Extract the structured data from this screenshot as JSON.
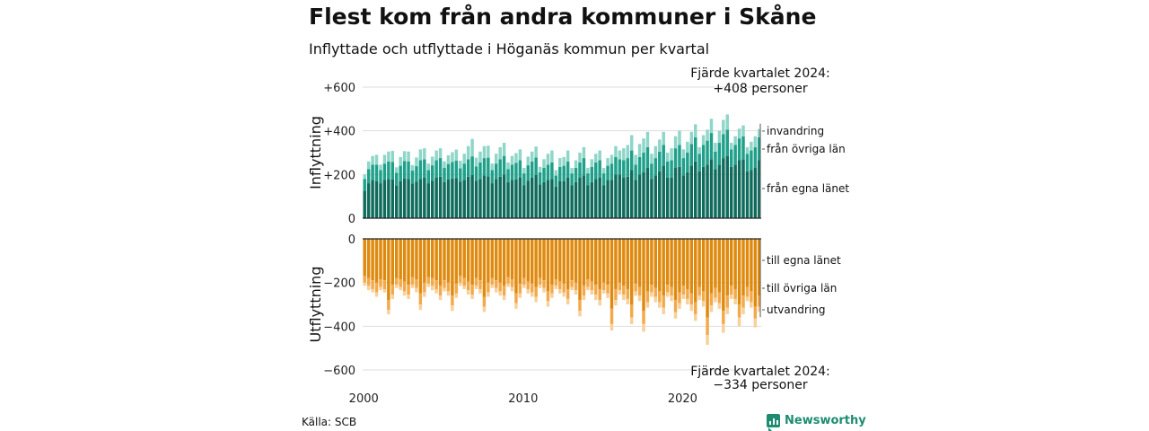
{
  "title": "Flest kom från andra kommuner i Skåne",
  "subtitle": "Inflyttade och utflyttade i Höganäs kommun per kvartal",
  "source": "Källa: SCB",
  "brand": "Newsworthy",
  "colors": {
    "in_own": "#0f6b5c",
    "in_other": "#1fa08a",
    "in_abroad": "#8fd6c9",
    "out_own": "#df8a0e",
    "out_other": "#f3a94a",
    "out_abroad": "#f8d09a",
    "grid": "#dddddd",
    "axis": "#222222"
  },
  "chart_data": {
    "type": "bar",
    "stacked": true,
    "x": {
      "start_year": 2000,
      "periods_per_year": 4,
      "ticks": [
        "2000",
        "2010",
        "2020"
      ]
    },
    "panels": [
      {
        "ylabel": "Inflyttning",
        "ylim": [
          0,
          600
        ],
        "yticks": [
          "0",
          "+200",
          "+400",
          "+600"
        ],
        "annotation": [
          "Fjärde kvartalet 2024:",
          "+408 personer"
        ],
        "series": [
          {
            "name": "från egna länet",
            "color_key": "in_own",
            "values": [
              125,
              160,
              175,
              170,
              160,
              175,
              180,
              178,
              148,
              170,
              182,
              180,
              158,
              168,
              180,
              185,
              160,
              172,
              185,
              190,
              165,
              178,
              182,
              184,
              168,
              175,
              190,
              198,
              172,
              180,
              195,
              192,
              160,
              180,
              190,
              200,
              165,
              175,
              178,
              185,
              150,
              172,
              185,
              198,
              155,
              165,
              175,
              180,
              145,
              170,
              170,
              185,
              150,
              165,
              185,
              195,
              150,
              165,
              180,
              185,
              150,
              175,
              175,
              200,
              200,
              185,
              190,
              220,
              175,
              200,
              210,
              230,
              180,
              195,
              215,
              240,
              185,
              185,
              230,
              235,
              195,
              210,
              240,
              260,
              215,
              235,
              245,
              270,
              225,
              245,
              275,
              285,
              235,
              245,
              265,
              270,
              215,
              220,
              230,
              265
            ]
          },
          {
            "name": "från övriga län",
            "color_key": "in_other",
            "values": [
              55,
              65,
              70,
              75,
              60,
              75,
              80,
              80,
              60,
              70,
              80,
              80,
              60,
              70,
              85,
              85,
              60,
              70,
              80,
              85,
              65,
              70,
              75,
              80,
              60,
              75,
              80,
              85,
              65,
              75,
              80,
              85,
              60,
              70,
              80,
              85,
              60,
              70,
              75,
              80,
              55,
              70,
              75,
              80,
              55,
              65,
              70,
              75,
              50,
              65,
              70,
              75,
              55,
              65,
              70,
              80,
              55,
              70,
              75,
              80,
              55,
              65,
              75,
              80,
              70,
              80,
              85,
              90,
              70,
              80,
              90,
              95,
              70,
              80,
              90,
              95,
              75,
              80,
              90,
              100,
              80,
              90,
              100,
              110,
              80,
              100,
              110,
              120,
              80,
              100,
              110,
              120,
              80,
              90,
              100,
              105,
              80,
              90,
              95,
              105
            ]
          },
          {
            "name": "invandring",
            "color_key": "in_abroad",
            "values": [
              20,
              35,
              40,
              45,
              25,
              40,
              45,
              50,
              25,
              40,
              45,
              45,
              25,
              40,
              50,
              50,
              30,
              40,
              45,
              45,
              30,
              40,
              45,
              50,
              35,
              45,
              60,
              80,
              40,
              50,
              55,
              55,
              30,
              45,
              55,
              60,
              30,
              40,
              45,
              50,
              25,
              40,
              45,
              50,
              25,
              40,
              50,
              55,
              25,
              40,
              40,
              50,
              25,
              35,
              45,
              50,
              25,
              35,
              40,
              45,
              25,
              35,
              40,
              50,
              40,
              55,
              60,
              70,
              45,
              60,
              65,
              70,
              45,
              55,
              55,
              60,
              40,
              55,
              55,
              65,
              40,
              50,
              55,
              60,
              30,
              45,
              50,
              65,
              40,
              55,
              65,
              70,
              30,
              40,
              45,
              50,
              30,
              40,
              50,
              38
            ]
          }
        ]
      },
      {
        "ylabel": "Utflyttning",
        "ylim": [
          -600,
          0
        ],
        "yticks": [
          "0",
          "−200",
          "−400",
          "−600"
        ],
        "annotation": [
          "Fjärde kvartalet 2024:",
          "−334 personer"
        ],
        "series": [
          {
            "name": "till egna länet",
            "color_key": "out_own",
            "values": [
              -170,
              -180,
              -190,
              -200,
              -185,
              -190,
              -280,
              -210,
              -180,
              -185,
              -195,
              -210,
              -175,
              -185,
              -250,
              -200,
              -175,
              -180,
              -190,
              -215,
              -190,
              -200,
              -260,
              -205,
              -170,
              -180,
              -195,
              -210,
              -180,
              -190,
              -265,
              -200,
              -180,
              -190,
              -200,
              -215,
              -175,
              -185,
              -250,
              -205,
              -180,
              -195,
              -205,
              -220,
              -180,
              -190,
              -240,
              -210,
              -185,
              -195,
              -205,
              -230,
              -190,
              -200,
              -280,
              -215,
              -185,
              -195,
              -210,
              -230,
              -200,
              -210,
              -320,
              -230,
              -200,
              -215,
              -230,
              -300,
              -205,
              -220,
              -330,
              -240,
              -210,
              -225,
              -240,
              -260,
              -210,
              -220,
              -280,
              -245,
              -215,
              -230,
              -250,
              -290,
              -220,
              -240,
              -360,
              -250,
              -225,
              -245,
              -330,
              -260,
              -215,
              -230,
              -300,
              -260,
              -220,
              -240,
              -310,
              -260
            ]
          },
          {
            "name": "till övriga län",
            "color_key": "out_other",
            "values": [
              -30,
              -35,
              -40,
              -45,
              -35,
              -40,
              -45,
              -45,
              -30,
              -35,
              -45,
              -45,
              -35,
              -40,
              -50,
              -45,
              -30,
              -35,
              -40,
              -45,
              -35,
              -40,
              -45,
              -45,
              -30,
              -35,
              -40,
              -45,
              -35,
              -40,
              -45,
              -45,
              -30,
              -35,
              -40,
              -45,
              -30,
              -35,
              -45,
              -45,
              -30,
              -35,
              -40,
              -45,
              -30,
              -35,
              -45,
              -40,
              -30,
              -35,
              -40,
              -45,
              -30,
              -35,
              -50,
              -45,
              -35,
              -40,
              -45,
              -50,
              -35,
              -40,
              -70,
              -50,
              -35,
              -40,
              -45,
              -60,
              -35,
              -40,
              -60,
              -50,
              -35,
              -40,
              -50,
              -55,
              -35,
              -40,
              -55,
              -50,
              -40,
              -45,
              -50,
              -55,
              -40,
              -45,
              -80,
              -55,
              -45,
              -50,
              -60,
              -55,
              -40,
              -45,
              -60,
              -55,
              -45,
              -50,
              -55,
              -50
            ]
          },
          {
            "name": "utvandring",
            "color_key": "out_abroad",
            "values": [
              -15,
              -20,
              -15,
              -20,
              -15,
              -15,
              -20,
              -20,
              -15,
              -15,
              -20,
              -20,
              -15,
              -20,
              -25,
              -20,
              -15,
              -20,
              -20,
              -20,
              -15,
              -20,
              -25,
              -20,
              -15,
              -15,
              -20,
              -20,
              -15,
              -20,
              -25,
              -20,
              -15,
              -20,
              -20,
              -20,
              -15,
              -20,
              -25,
              -20,
              -15,
              -20,
              -20,
              -25,
              -15,
              -20,
              -25,
              -20,
              -15,
              -20,
              -20,
              -25,
              -15,
              -20,
              -25,
              -20,
              -15,
              -20,
              -25,
              -25,
              -15,
              -20,
              -30,
              -25,
              -20,
              -25,
              -25,
              -30,
              -20,
              -25,
              -35,
              -25,
              -20,
              -25,
              -25,
              -30,
              -20,
              -25,
              -30,
              -25,
              -20,
              -25,
              -30,
              -30,
              -20,
              -25,
              -45,
              -30,
              -20,
              -25,
              -40,
              -30,
              -20,
              -25,
              -40,
              -30,
              -20,
              -25,
              -40,
              -24
            ]
          }
        ]
      }
    ]
  }
}
